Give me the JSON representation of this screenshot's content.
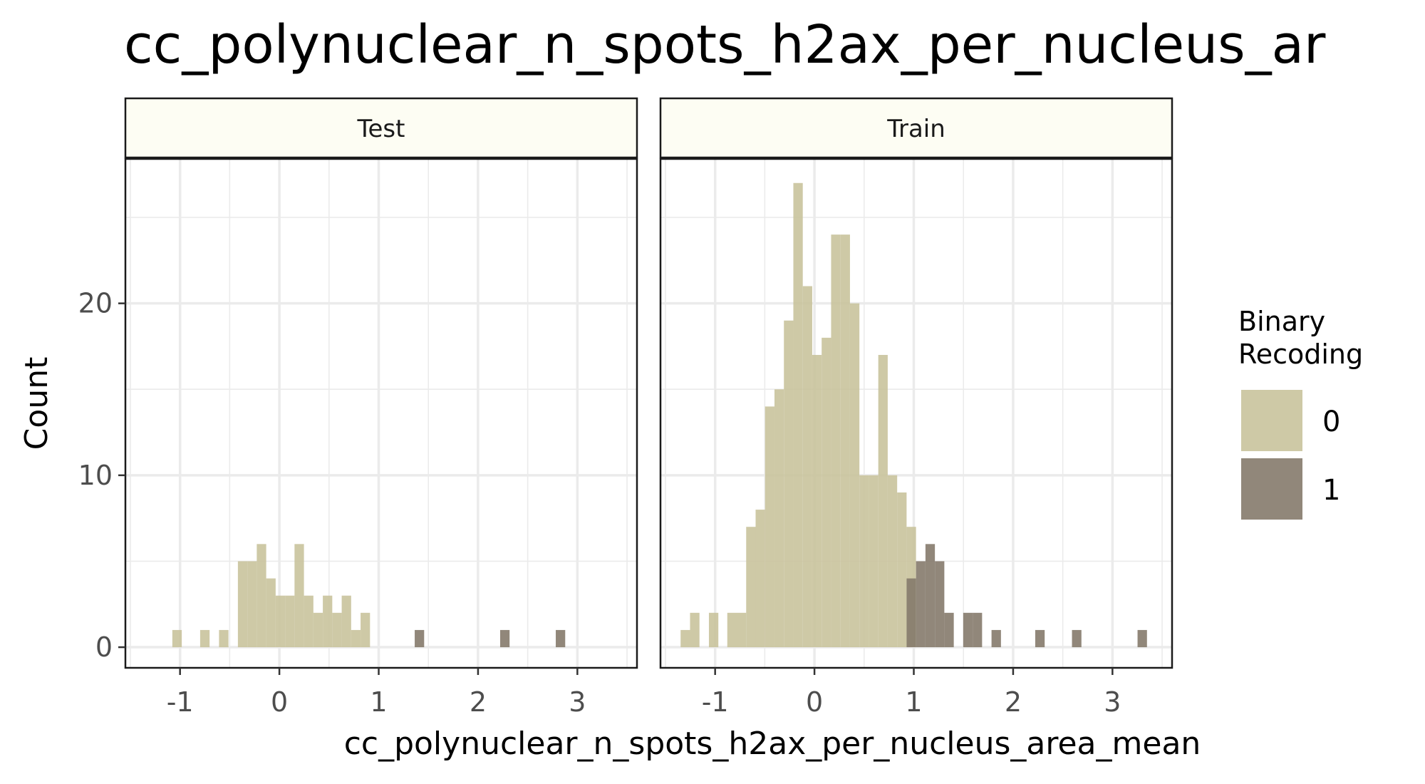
{
  "chart_data": {
    "type": "histogram",
    "title": "cc_polynuclear_n_spots_h2ax_per_nucleus_ar",
    "xlabel": "cc_polynuclear_n_spots_h2ax_per_nucleus_area_mean",
    "ylabel": "Count",
    "xlim": [
      -1.55,
      3.6
    ],
    "ylim": [
      -1.2,
      28.4
    ],
    "x_ticks": [
      -1,
      0,
      1,
      2,
      3
    ],
    "x_tick_labels": [
      "-1",
      "0",
      "1",
      "2",
      "3"
    ],
    "y_ticks": [
      0,
      10,
      20
    ],
    "y_tick_labels": [
      "0",
      "10",
      "20"
    ],
    "grid": true,
    "legend_position": "right",
    "legend": {
      "title_lines": [
        "Binary",
        "Recoding"
      ],
      "entries": [
        {
          "label": "0",
          "color": "#c9c39c"
        },
        {
          "label": "1",
          "color": "#857a6c"
        }
      ]
    },
    "bin_width": 0.095,
    "panels": [
      {
        "name": "Test",
        "bars": [
          {
            "x": -1.03,
            "count": 1,
            "group": "0"
          },
          {
            "x": -0.75,
            "count": 1,
            "group": "0"
          },
          {
            "x": -0.56,
            "count": 1,
            "group": "0"
          },
          {
            "x": -0.37,
            "count": 5,
            "group": "0"
          },
          {
            "x": -0.275,
            "count": 5,
            "group": "0"
          },
          {
            "x": -0.18,
            "count": 6,
            "group": "0"
          },
          {
            "x": -0.085,
            "count": 4,
            "group": "0"
          },
          {
            "x": 0.01,
            "count": 3,
            "group": "0"
          },
          {
            "x": 0.105,
            "count": 3,
            "group": "0"
          },
          {
            "x": 0.2,
            "count": 6,
            "group": "0"
          },
          {
            "x": 0.295,
            "count": 3,
            "group": "0"
          },
          {
            "x": 0.39,
            "count": 2,
            "group": "0"
          },
          {
            "x": 0.485,
            "count": 3,
            "group": "0"
          },
          {
            "x": 0.58,
            "count": 2,
            "group": "0"
          },
          {
            "x": 0.675,
            "count": 3,
            "group": "0"
          },
          {
            "x": 0.77,
            "count": 1,
            "group": "0"
          },
          {
            "x": 0.865,
            "count": 2,
            "group": "0"
          },
          {
            "x": 1.41,
            "count": 1,
            "group": "1"
          },
          {
            "x": 2.27,
            "count": 1,
            "group": "1"
          },
          {
            "x": 2.83,
            "count": 1,
            "group": "1"
          }
        ]
      },
      {
        "name": "Train",
        "bars": [
          {
            "x": -1.3,
            "count": 1,
            "group": "0"
          },
          {
            "x": -1.205,
            "count": 2,
            "group": "0"
          },
          {
            "x": -1.015,
            "count": 2,
            "group": "0"
          },
          {
            "x": -0.83,
            "count": 2,
            "group": "0"
          },
          {
            "x": -0.735,
            "count": 2,
            "group": "0"
          },
          {
            "x": -0.64,
            "count": 7,
            "group": "0"
          },
          {
            "x": -0.545,
            "count": 8,
            "group": "0"
          },
          {
            "x": -0.45,
            "count": 14,
            "group": "0"
          },
          {
            "x": -0.355,
            "count": 15,
            "group": "0"
          },
          {
            "x": -0.26,
            "count": 19,
            "group": "0"
          },
          {
            "x": -0.165,
            "count": 27,
            "group": "0"
          },
          {
            "x": -0.07,
            "count": 21,
            "group": "0"
          },
          {
            "x": 0.025,
            "count": 17,
            "group": "0"
          },
          {
            "x": 0.12,
            "count": 18,
            "group": "0"
          },
          {
            "x": 0.215,
            "count": 24,
            "group": "0"
          },
          {
            "x": 0.31,
            "count": 24,
            "group": "0"
          },
          {
            "x": 0.405,
            "count": 20,
            "group": "0"
          },
          {
            "x": 0.5,
            "count": 10,
            "group": "0"
          },
          {
            "x": 0.595,
            "count": 10,
            "group": "0"
          },
          {
            "x": 0.69,
            "count": 17,
            "group": "0"
          },
          {
            "x": 0.785,
            "count": 10,
            "group": "0"
          },
          {
            "x": 0.88,
            "count": 9,
            "group": "0"
          },
          {
            "x": 0.975,
            "count": 7,
            "group": "0"
          },
          {
            "x": 0.975,
            "count": 4,
            "group": "1"
          },
          {
            "x": 1.07,
            "count": 5,
            "group": "1"
          },
          {
            "x": 1.165,
            "count": 6,
            "group": "1"
          },
          {
            "x": 1.26,
            "count": 5,
            "group": "1"
          },
          {
            "x": 1.355,
            "count": 2,
            "group": "1"
          },
          {
            "x": 1.545,
            "count": 2,
            "group": "1"
          },
          {
            "x": 1.64,
            "count": 2,
            "group": "1"
          },
          {
            "x": 1.83,
            "count": 1,
            "group": "1"
          },
          {
            "x": 2.27,
            "count": 1,
            "group": "1"
          },
          {
            "x": 2.64,
            "count": 1,
            "group": "1"
          },
          {
            "x": 3.3,
            "count": 1,
            "group": "1"
          }
        ]
      }
    ]
  }
}
